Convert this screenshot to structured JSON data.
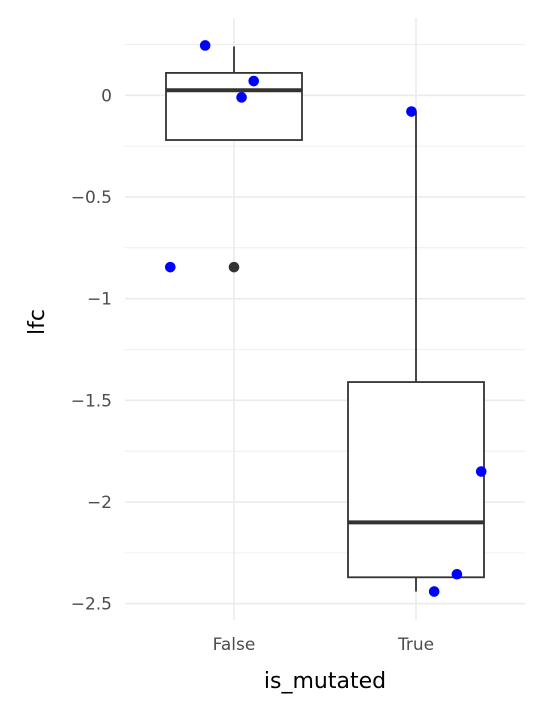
{
  "chart_data": {
    "type": "box",
    "xlabel": "is_mutated",
    "ylabel": "lfc",
    "categories": [
      "False",
      "True"
    ],
    "ylim": [
      -2.58,
      0.38
    ],
    "y_ticks": [
      0,
      -0.5,
      -1,
      -1.5,
      -2,
      -2.5
    ],
    "y_tick_labels": [
      "0",
      "−0.5",
      "−1",
      "−1.5",
      "−2",
      "−2.5"
    ],
    "grid": true,
    "boxes": [
      {
        "category": "False",
        "q1": -0.22,
        "median": 0.025,
        "q3": 0.11,
        "whisker_low": -0.22,
        "whisker_high": 0.24,
        "outliers": [
          -0.845
        ]
      },
      {
        "category": "True",
        "q1": -2.37,
        "median": -2.1,
        "q3": -1.41,
        "whisker_low": -2.44,
        "whisker_high": -0.08,
        "outliers": []
      }
    ],
    "points": [
      {
        "category": "False",
        "jitter": -0.19,
        "y": 0.245
      },
      {
        "category": "False",
        "jitter": 0.13,
        "y": 0.07
      },
      {
        "category": "False",
        "jitter": 0.05,
        "y": -0.01
      },
      {
        "category": "False",
        "jitter": -0.42,
        "y": -0.845
      },
      {
        "category": "True",
        "jitter": -0.03,
        "y": -0.08
      },
      {
        "category": "True",
        "jitter": 0.43,
        "y": -1.85
      },
      {
        "category": "True",
        "jitter": 0.27,
        "y": -2.355
      },
      {
        "category": "True",
        "jitter": 0.12,
        "y": -2.44
      }
    ],
    "colors": {
      "points": "#0000ff",
      "outlier": "#333333",
      "box": "#333333",
      "grid": "#ebebeb"
    }
  }
}
